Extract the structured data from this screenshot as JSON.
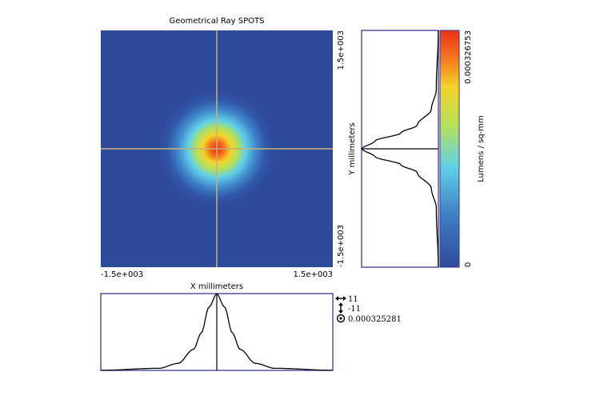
{
  "chart_data": {
    "type": "heatmap",
    "title": "Geometrical Ray SPOTS",
    "xlabel": "X millimeters",
    "ylabel": "Y millimeters",
    "x_ticks": [
      "-1.5e+003",
      "1.5e+003"
    ],
    "y_ticks": [
      "1.5e+003",
      "-1.5e+003"
    ],
    "xlim": [
      -1500,
      1500
    ],
    "ylim": [
      -1500,
      1500
    ],
    "colorbar": {
      "label": "Lumens / sq-mm",
      "max_label": "0.000326753",
      "min_label": "0",
      "range": [
        0,
        0.000326753
      ]
    },
    "peak": {
      "x": 0,
      "y": 0,
      "value": 0.000326753
    },
    "profile_x": {
      "x": [
        -1500,
        -750,
        -500,
        -300,
        -200,
        -100,
        0,
        100,
        200,
        300,
        500,
        750,
        1500
      ],
      "values": [
        3e-07,
        9e-06,
        3e-05,
        9e-05,
        0.00016,
        0.00027,
        0.000325281,
        0.00027,
        0.00016,
        9e-05,
        3e-05,
        9e-06,
        3e-07
      ]
    },
    "profile_y": {
      "y": [
        -1500,
        -750,
        -500,
        -300,
        -200,
        -100,
        0,
        100,
        200,
        300,
        500,
        750,
        1500
      ],
      "values": [
        3e-07,
        9e-06,
        3e-05,
        9e-05,
        0.00016,
        0.00027,
        0.000325281,
        0.00027,
        0.00016,
        9e-05,
        3e-05,
        9e-06,
        3e-07
      ]
    },
    "readout": {
      "x_value": "11",
      "y_value": "-11",
      "value": "0.000325281"
    },
    "colors": {
      "background": "#2e4b9b",
      "crosshair": "#c8b27a",
      "frame": "#3b3b8f",
      "curve": "#000000"
    }
  }
}
